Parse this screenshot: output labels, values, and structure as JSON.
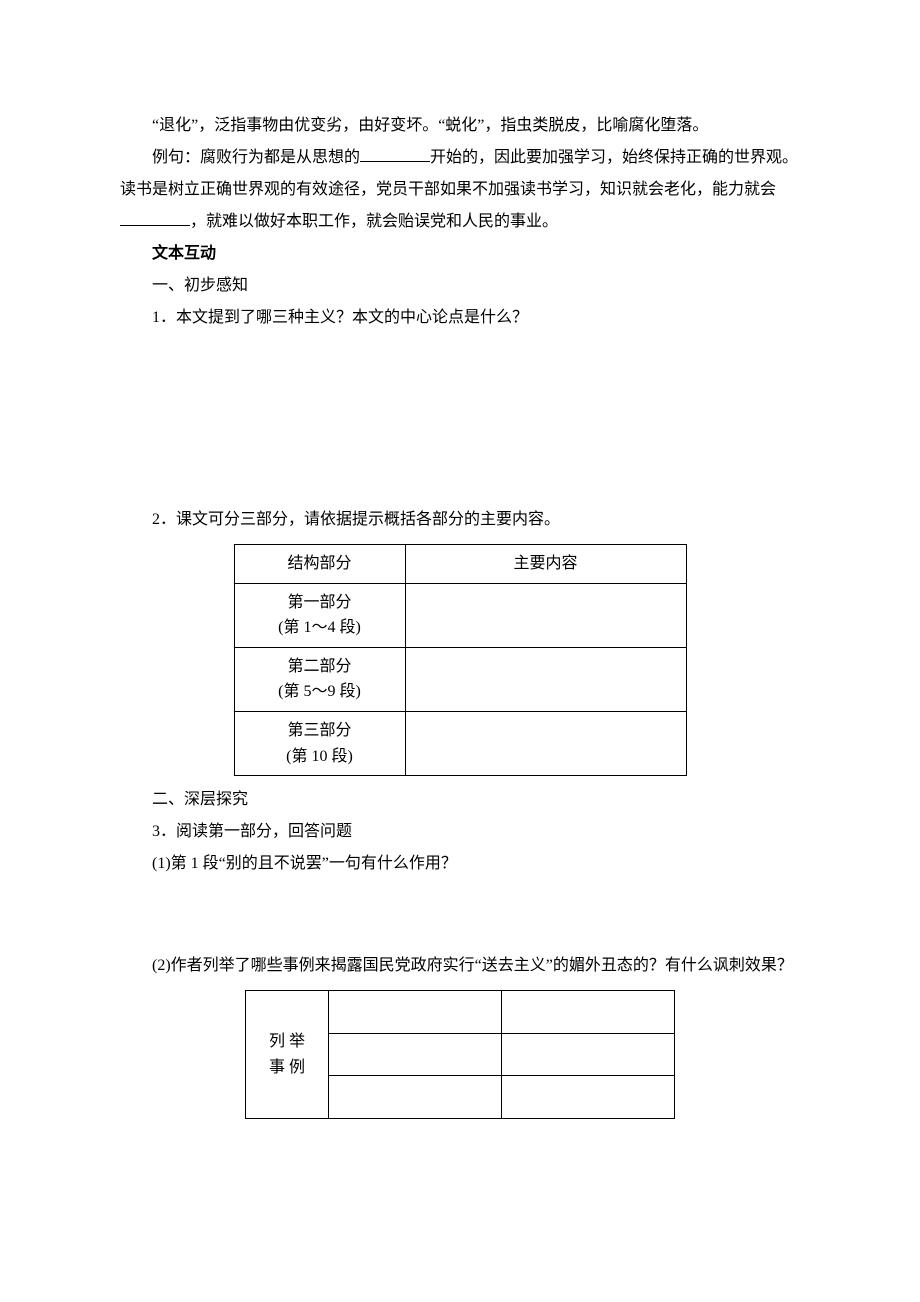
{
  "p1_a": "“退化”，泛指事物由优变劣，由好变坏。“蜕化”，指虫类脱皮，比喻腐化堕落。",
  "p2_a": "例句：腐败行为都是从思想的",
  "p2_b": "开始的，因此要加强学习，始终保持正确的世界观。读书是树立正确世界观的有效途径，党员干部如果不加强读书学习，知识就会老化，能力就会",
  "p2_c": "，就难以做好本职工作，就会贻误党和人民的事业。",
  "h1": "文本互动",
  "s1": "一、初步感知",
  "q1": "1．本文提到了哪三种主义？本文的中心论点是什么？",
  "q2": "2．课文可分三部分，请依据提示概括各部分的主要内容。",
  "table1": {
    "head": {
      "c1": "结构部分",
      "c2": "主要内容"
    },
    "rows": [
      {
        "c1a": "第一部分",
        "c1b": "(第 1～4 段)",
        "c2": ""
      },
      {
        "c1a": "第二部分",
        "c1b": "(第 5～9 段)",
        "c2": ""
      },
      {
        "c1a": "第三部分",
        "c1b": "(第 10 段)",
        "c2": ""
      }
    ]
  },
  "s2": "二、深层探究",
  "q3": "3．阅读第一部分，回答问题",
  "q3_1": "(1)第 1 段“别的且不说罢”一句有什么作用？",
  "q3_2": "(2)作者列举了哪些事例来揭露国民党政府实行“送去主义”的媚外丑态的？有什么讽刺效果？",
  "table2": {
    "label_a": "列 举",
    "label_b": "事 例"
  },
  "style": {
    "blank_w1": 70,
    "blank_w2": 70
  }
}
